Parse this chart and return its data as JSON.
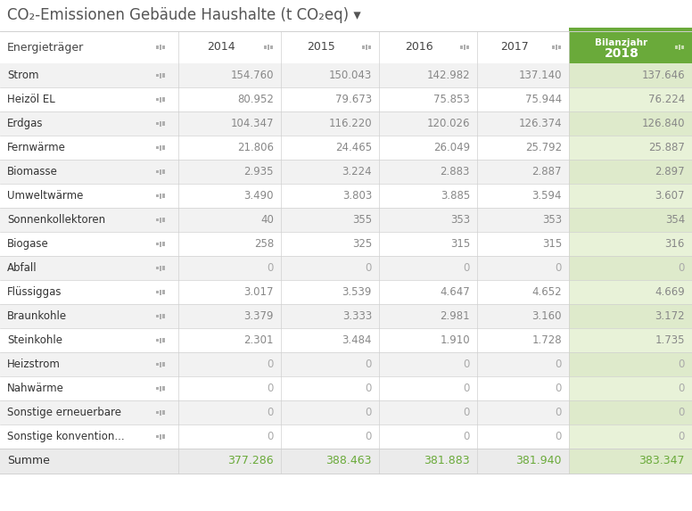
{
  "title": "CO₂-Emissionen Gebäude Haushalte (t CO₂eq) ▾",
  "rows": [
    [
      "Energieträger",
      "2014",
      "2015",
      "2016",
      "2017",
      "2018"
    ],
    [
      "Strom",
      "154.760",
      "150.043",
      "142.982",
      "137.140",
      "137.646"
    ],
    [
      "Heizöl EL",
      "80.952",
      "79.673",
      "75.853",
      "75.944",
      "76.224"
    ],
    [
      "Erdgas",
      "104.347",
      "116.220",
      "120.026",
      "126.374",
      "126.840"
    ],
    [
      "Fernwärme",
      "21.806",
      "24.465",
      "26.049",
      "25.792",
      "25.887"
    ],
    [
      "Biomasse",
      "2.935",
      "3.224",
      "2.883",
      "2.887",
      "2.897"
    ],
    [
      "Umweltwärme",
      "3.490",
      "3.803",
      "3.885",
      "3.594",
      "3.607"
    ],
    [
      "Sonnenkollektoren",
      "40",
      "355",
      "353",
      "353",
      "354"
    ],
    [
      "Biogase",
      "258",
      "325",
      "315",
      "315",
      "316"
    ],
    [
      "Abfall",
      "0",
      "0",
      "0",
      "0",
      "0"
    ],
    [
      "Flüssiggas",
      "3.017",
      "3.539",
      "4.647",
      "4.652",
      "4.669"
    ],
    [
      "Braunkohle",
      "3.379",
      "3.333",
      "2.981",
      "3.160",
      "3.172"
    ],
    [
      "Steinkohle",
      "2.301",
      "3.484",
      "1.910",
      "1.728",
      "1.735"
    ],
    [
      "Heizstrom",
      "0",
      "0",
      "0",
      "0",
      "0"
    ],
    [
      "Nahwärme",
      "0",
      "0",
      "0",
      "0",
      "0"
    ],
    [
      "Sonstige erneuerbare",
      "0",
      "0",
      "0",
      "0",
      "0"
    ],
    [
      "Sonstige konvention...",
      "0",
      "0",
      "0",
      "0",
      "0"
    ]
  ],
  "summe": [
    "Summe",
    "377.286",
    "388.463",
    "381.883",
    "381.940",
    "383.347"
  ],
  "title_color": "#555555",
  "header2018_bg": "#6aaa3a",
  "header2018_text": "#ffffff",
  "col_header_color": "#444444",
  "row_label_color": "#333333",
  "data_color": "#888888",
  "data_color_zero": "#aaaaaa",
  "summe_color": "#6aaa3a",
  "alt_row_bg": "#f2f2f2",
  "white_row_bg": "#ffffff",
  "last_col_alt_bg": "#deeacb",
  "last_col_white_bg": "#e8f2d8",
  "summe_row_bg": "#ebebeb",
  "summe_last_col_bg": "#deeacb",
  "border_color": "#d0d0d0",
  "icon_color": "#b0b0b0",
  "icon_color_white": "#c8ddb0"
}
